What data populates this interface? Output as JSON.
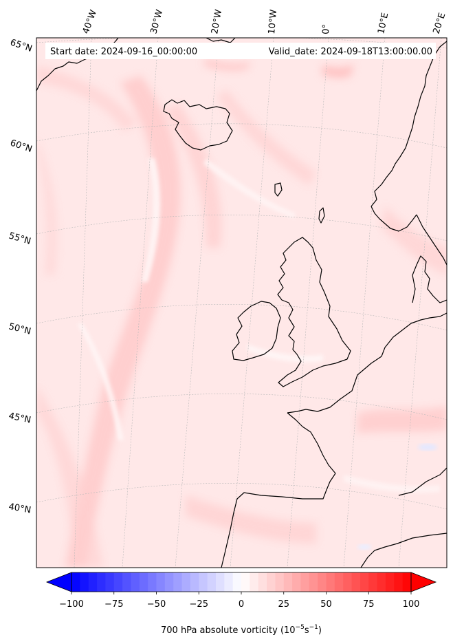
{
  "header": {
    "start_date": "Start date: 2024-09-16_00:00:00",
    "valid_date": "Valid_date: 2024-09-18T13:00:00.00"
  },
  "lon_labels": [
    "40°W",
    "30°W",
    "20°W",
    "10°W",
    "0°",
    "10°E",
    "20°E"
  ],
  "lat_labels": [
    "65°N",
    "60°N",
    "55°N",
    "50°N",
    "45°N",
    "40°N"
  ],
  "colorbar": {
    "min": -100,
    "max": 100,
    "ticks": [
      "−100",
      "−75",
      "−50",
      "−25",
      "0",
      "25",
      "50",
      "75",
      "100"
    ],
    "label_main": "700 hPa absolute vorticity (10",
    "label_sup1": "−5",
    "label_mid": "s",
    "label_sup2": "−1",
    "label_end": ")",
    "colors": {
      "low": "#0000ff",
      "mid": "#ffffff",
      "high": "#ff0000"
    }
  },
  "colors": {
    "coastline": "#000000",
    "gridline": "#b0b0b0",
    "field_base": "#ffe6e6",
    "field_strong": "#ffc4c4",
    "field_weak": "#fff4f4"
  }
}
